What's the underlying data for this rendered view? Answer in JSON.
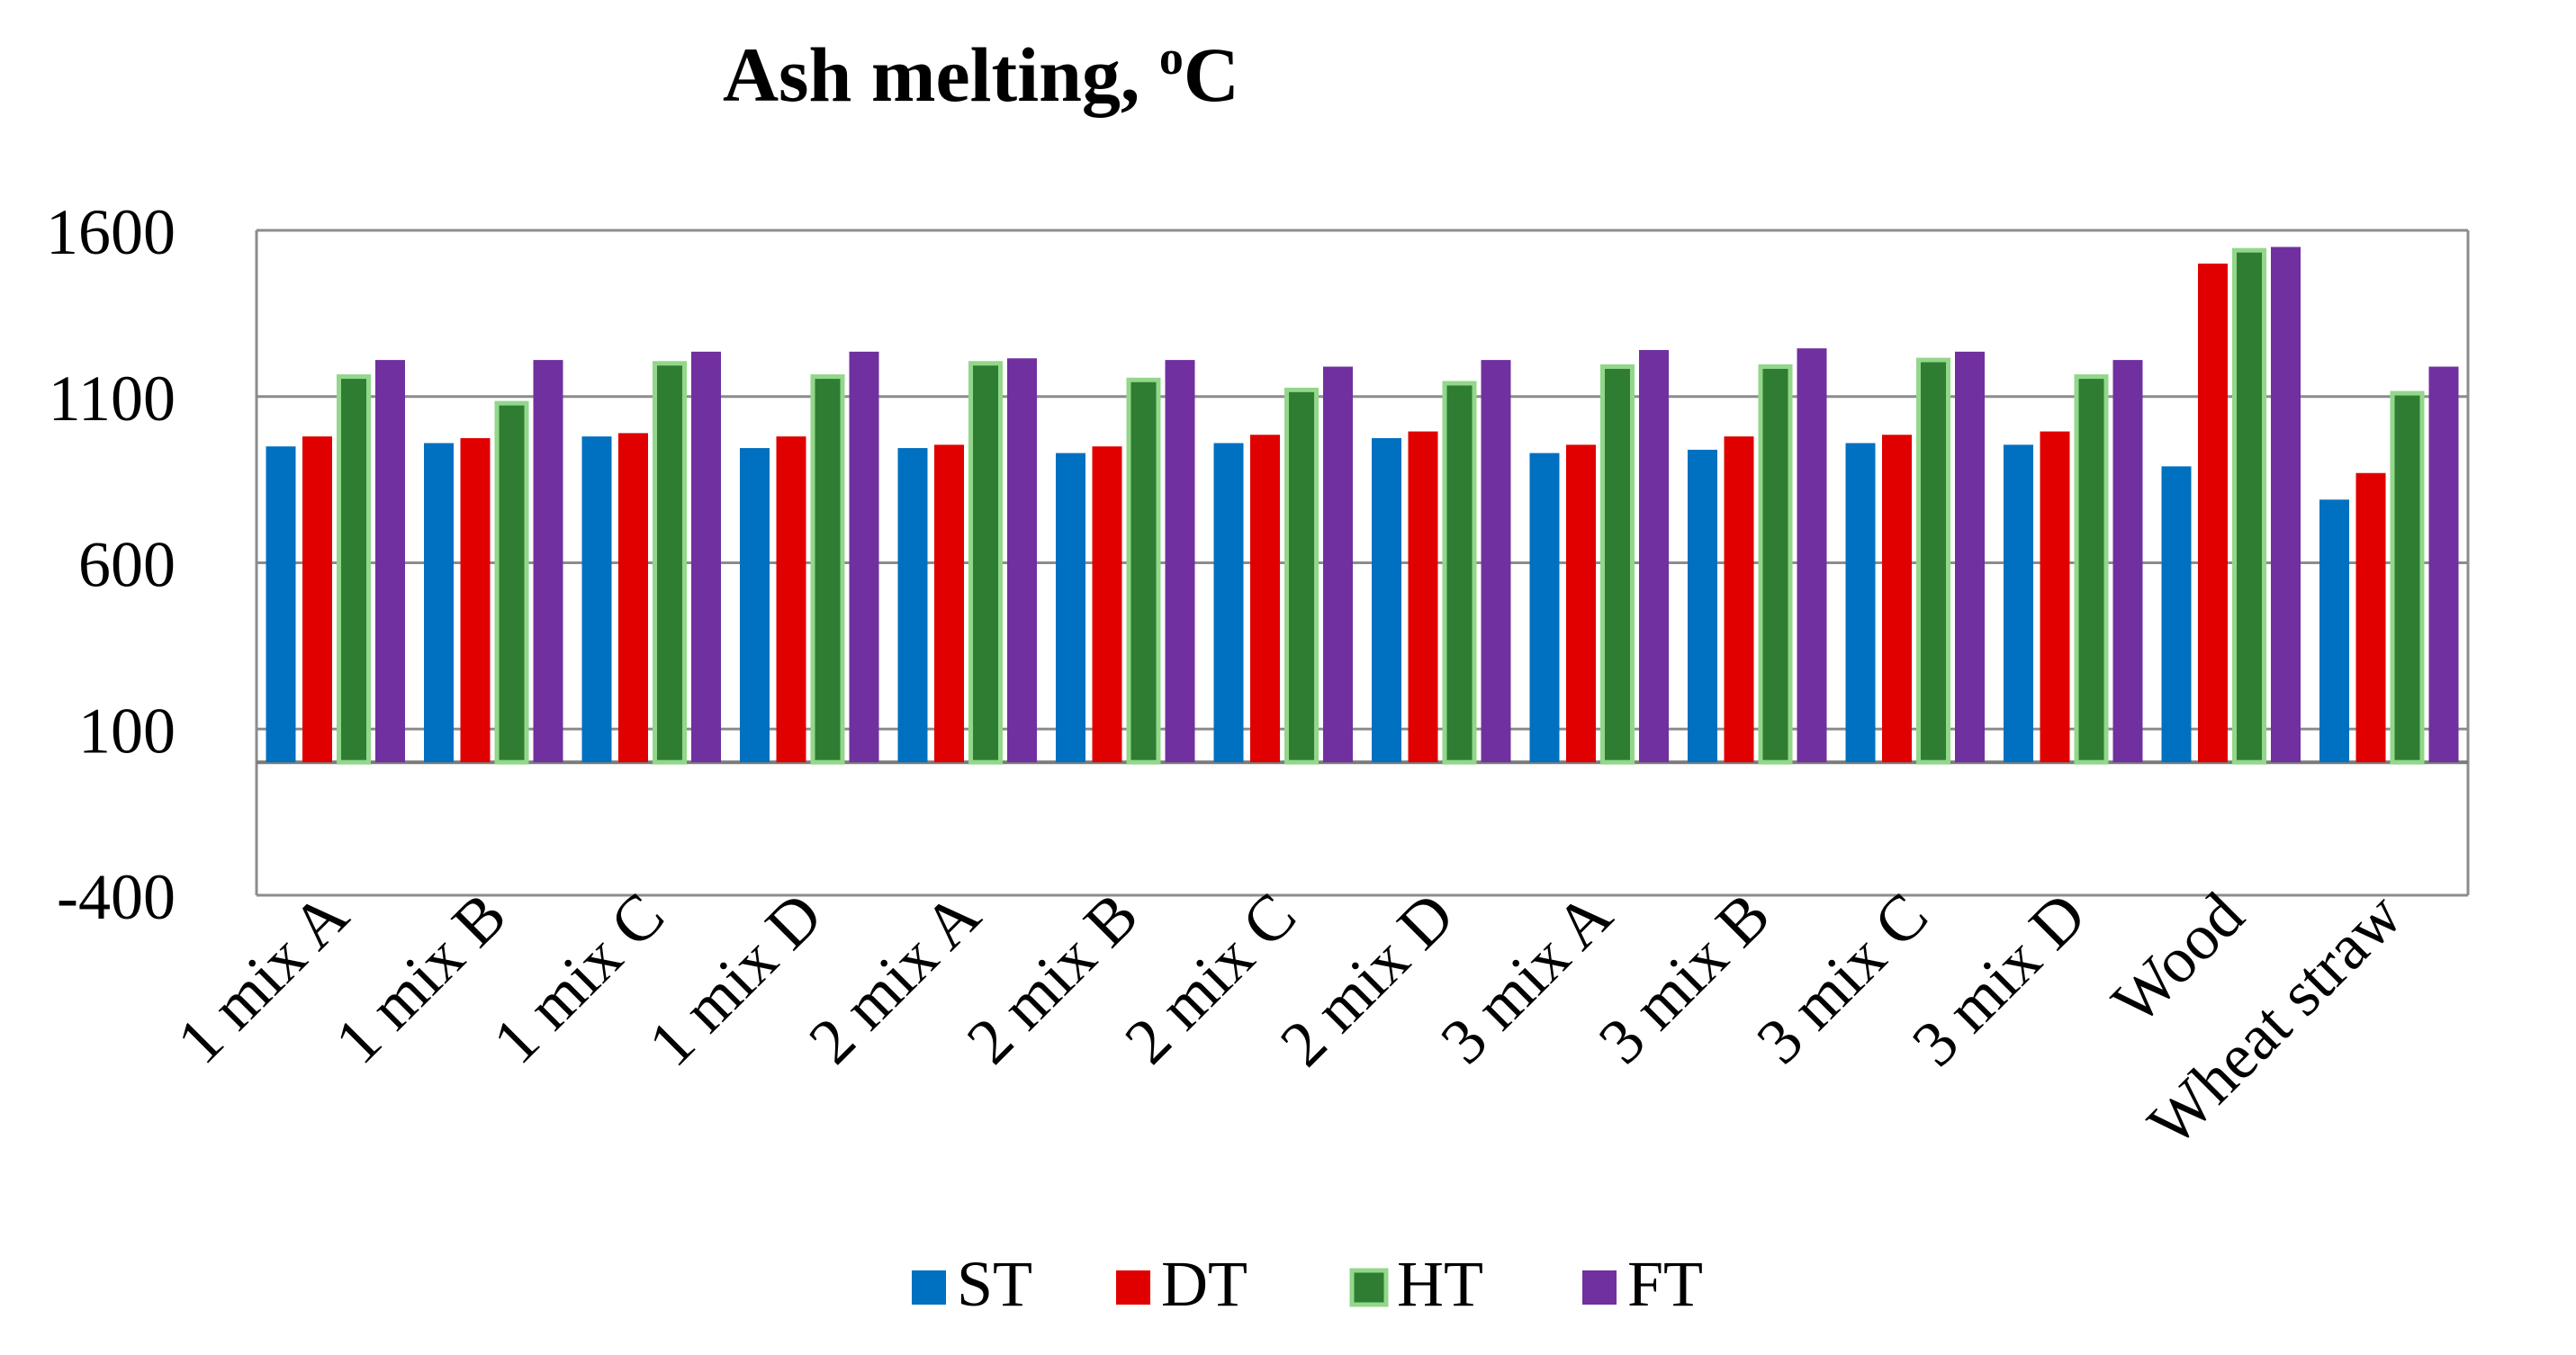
{
  "chart_data": {
    "type": "bar",
    "title_main": "Ash melting, ",
    "title_sup": "o",
    "title_unit": "C",
    "categories": [
      "1 mix A",
      "1 mix B",
      "1 mix C",
      "1 mix D",
      "2 mix A",
      "2 mix B",
      "2 mix C",
      "2 mix D",
      "3 mix A",
      "3 mix B",
      "3 mix C",
      "3 mix D",
      "Wood",
      "Wheat straw"
    ],
    "series": [
      {
        "name": "ST",
        "color": "#0070C0",
        "values": [
          950,
          960,
          980,
          945,
          945,
          930,
          960,
          975,
          930,
          940,
          960,
          955,
          890,
          790
        ]
      },
      {
        "name": "DT",
        "color": "#E00000",
        "values": [
          980,
          975,
          990,
          980,
          955,
          950,
          985,
          995,
          955,
          980,
          985,
          995,
          1500,
          870
        ]
      },
      {
        "name": "HT",
        "color": "#2E7D32",
        "values": [
          1160,
          1080,
          1200,
          1160,
          1200,
          1150,
          1120,
          1140,
          1190,
          1190,
          1210,
          1160,
          1540,
          1110
        ]
      },
      {
        "name": "FT",
        "color": "#7030A0",
        "values": [
          1210,
          1210,
          1235,
          1235,
          1215,
          1210,
          1190,
          1210,
          1240,
          1245,
          1235,
          1210,
          1550,
          1190
        ]
      }
    ],
    "ylim": [
      -400,
      1600
    ],
    "yticks": [
      -400,
      100,
      600,
      1100,
      1600
    ],
    "ytick_labels": [
      "-400",
      "100",
      "600",
      "1100",
      "1600"
    ],
    "grid": true,
    "legend_position": "bottom",
    "xlabel": "",
    "ylabel": ""
  }
}
